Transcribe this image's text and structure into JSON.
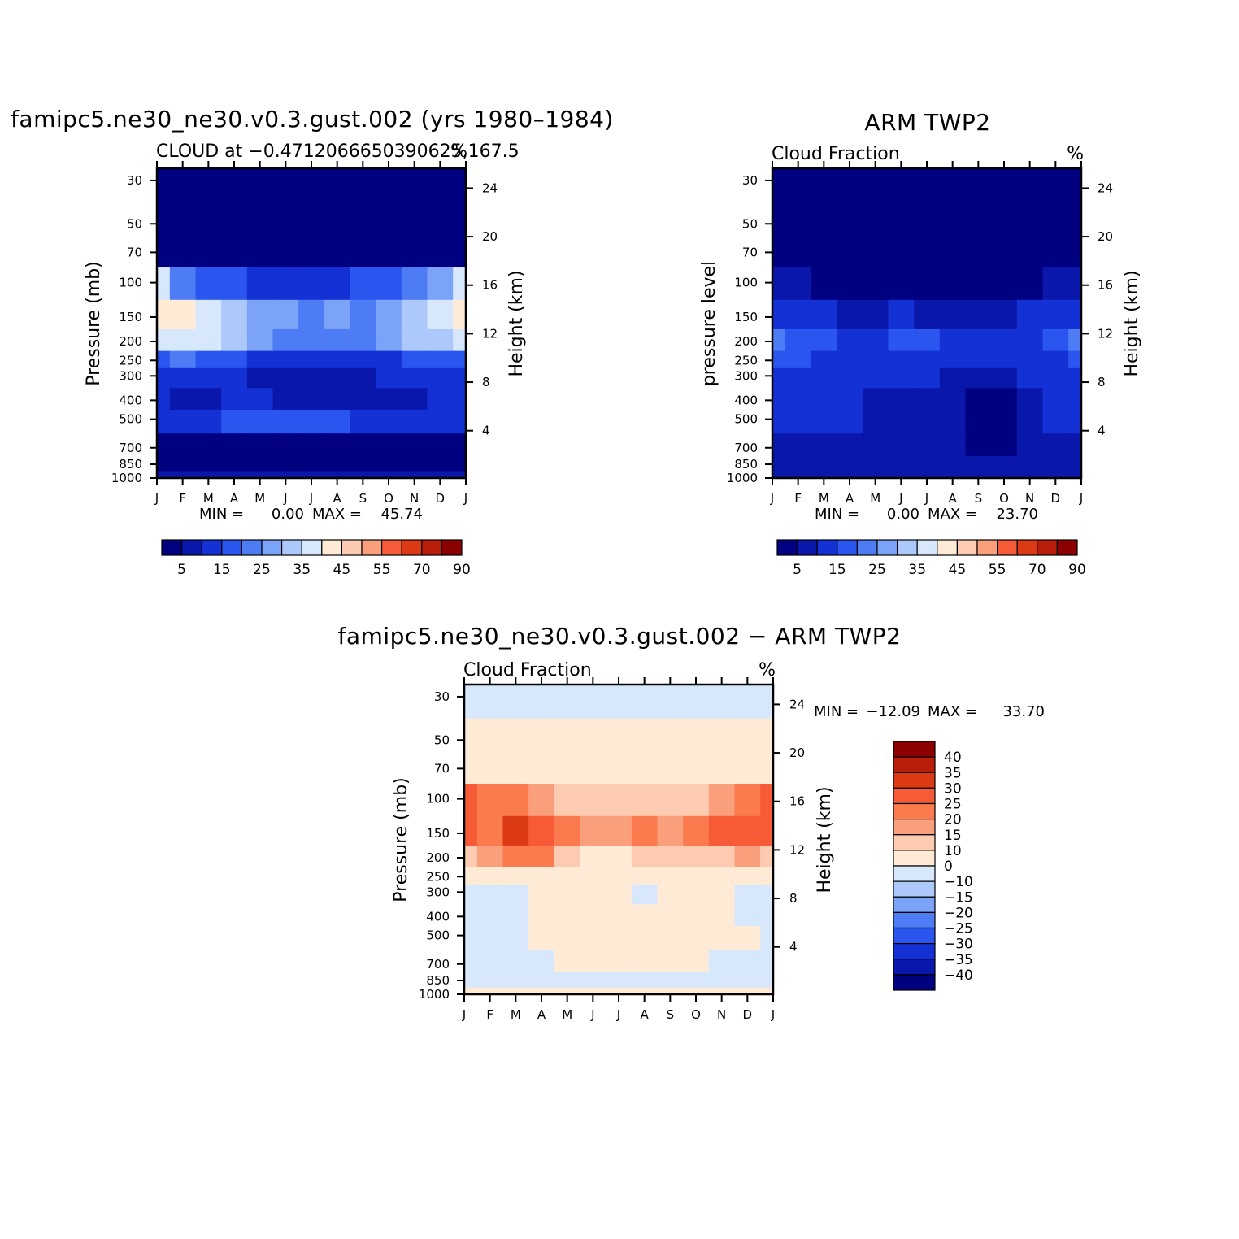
{
  "palette": {
    "blue_red_14": [
      "#000080",
      "#0a17ab",
      "#1431d6",
      "#2a55ee",
      "#4d7cf5",
      "#7ba3f7",
      "#adc8fa",
      "#d7e8fd",
      "#ffead6",
      "#fdcbb2",
      "#fa9f7b",
      "#f65a36",
      "#dc3a14",
      "#b81e09",
      "#8b0000"
    ],
    "diff_18": [
      "#000080",
      "#0a17ab",
      "#1431d6",
      "#2a55ee",
      "#4d7cf5",
      "#7ba3f7",
      "#adc8fa",
      "#d7e8fd",
      "#ffead6",
      "#fdcbb2",
      "#fa9f7b",
      "#fb7a4e",
      "#f65a36",
      "#dc3a14",
      "#b81e09",
      "#8b0000"
    ]
  },
  "chart_data": [
    {
      "id": "model",
      "type": "heatmap",
      "title": "famipc5.ne30_ne30.v0.3.gust.002 (yrs 1980–1984)",
      "subtitle_left": "CLOUD at −0.4712066650390625,167.5",
      "subtitle_right": "%",
      "ylabel": "Pressure (mb)",
      "ylabel_right": "Height (km)",
      "pressure_ticks": [
        30,
        50,
        70,
        100,
        150,
        200,
        250,
        300,
        400,
        500,
        700,
        850,
        1000
      ],
      "height_ticks": [
        24,
        20,
        16,
        12,
        8,
        4
      ],
      "months": [
        "J",
        "F",
        "M",
        "A",
        "M",
        "J",
        "J",
        "A",
        "S",
        "O",
        "N",
        "D",
        "J"
      ],
      "stats": {
        "min_label": "MIN =",
        "min": "0.00",
        "max_label": "MAX =",
        "max": "45.74"
      },
      "levels": [
        30,
        50,
        70,
        100,
        150,
        200,
        250,
        300,
        400,
        500,
        700,
        850,
        1000
      ],
      "values": [
        [
          0,
          0,
          0,
          0,
          0,
          0,
          0,
          0,
          0,
          0,
          0,
          0,
          0
        ],
        [
          0,
          0,
          0,
          0,
          0,
          0,
          0,
          0,
          0,
          0,
          0,
          0,
          0
        ],
        [
          3,
          1,
          1,
          1,
          1,
          1,
          1,
          1,
          1,
          1,
          1,
          1,
          3
        ],
        [
          38,
          22,
          18,
          16,
          14,
          13,
          12,
          13,
          15,
          18,
          22,
          28,
          38
        ],
        [
          42,
          40,
          38,
          30,
          27,
          26,
          23,
          27,
          24,
          28,
          34,
          36,
          42
        ],
        [
          35,
          38,
          38,
          34,
          26,
          22,
          22,
          22,
          22,
          26,
          32,
          33,
          35
        ],
        [
          18,
          20,
          19,
          16,
          14,
          13,
          12,
          12,
          13,
          14,
          16,
          17,
          18
        ],
        [
          12,
          12,
          12,
          11,
          9,
          8,
          8,
          8,
          9,
          10,
          11,
          12,
          12
        ],
        [
          10,
          7,
          7,
          12,
          11,
          8,
          8,
          8,
          8,
          8,
          8,
          10,
          10
        ],
        [
          12,
          11,
          12,
          18,
          16,
          16,
          16,
          16,
          14,
          13,
          12,
          12,
          12
        ],
        [
          4,
          4,
          4,
          4,
          4,
          4,
          4,
          4,
          4,
          4,
          4,
          4,
          4
        ],
        [
          3,
          3,
          3,
          3,
          3,
          3,
          3,
          3,
          3,
          3,
          3,
          3,
          3
        ],
        [
          9,
          9,
          9,
          9,
          9,
          9,
          9,
          9,
          9,
          9,
          9,
          9,
          9
        ]
      ]
    },
    {
      "id": "obs",
      "type": "heatmap",
      "title": "ARM TWP2",
      "subtitle_left": "Cloud Fraction",
      "subtitle_right": "%",
      "ylabel": "pressure level",
      "ylabel_right": "Height (km)",
      "pressure_ticks": [
        30,
        50,
        70,
        100,
        150,
        200,
        250,
        300,
        400,
        500,
        700,
        850,
        1000
      ],
      "height_ticks": [
        24,
        20,
        16,
        12,
        8,
        4
      ],
      "months": [
        "J",
        "F",
        "M",
        "A",
        "M",
        "J",
        "J",
        "A",
        "S",
        "O",
        "N",
        "D",
        "J"
      ],
      "stats": {
        "min_label": "MIN =",
        "min": "0.00",
        "max_label": "MAX =",
        "max": "23.70"
      },
      "levels": [
        30,
        50,
        70,
        100,
        150,
        200,
        250,
        300,
        400,
        500,
        700,
        850,
        1000
      ],
      "values": [
        [
          0,
          0,
          0,
          0,
          0,
          0,
          0,
          0,
          0,
          0,
          0,
          0,
          0
        ],
        [
          0,
          0,
          0,
          0,
          0,
          0,
          0,
          0,
          0,
          0,
          0,
          0,
          0
        ],
        [
          1,
          0,
          0,
          0,
          0,
          0,
          0,
          0,
          0,
          0,
          0,
          0,
          1
        ],
        [
          6,
          5,
          4,
          3,
          2,
          2,
          2,
          2,
          3,
          4,
          4,
          5,
          6
        ],
        [
          13,
          12,
          12,
          9,
          8,
          10,
          9,
          8,
          7,
          9,
          10,
          11,
          13
        ],
        [
          20,
          19,
          16,
          11,
          11,
          16,
          17,
          12,
          11,
          13,
          14,
          16,
          20
        ],
        [
          18,
          17,
          13,
          12,
          13,
          13,
          13,
          12,
          11,
          11,
          12,
          13,
          18
        ],
        [
          14,
          14,
          12,
          12,
          11,
          10,
          10,
          9,
          7,
          9,
          11,
          12,
          14
        ],
        [
          13,
          13,
          13,
          10,
          9,
          9,
          9,
          8,
          4,
          4,
          9,
          10,
          13
        ],
        [
          12,
          13,
          13,
          10,
          8,
          8,
          8,
          9,
          4,
          4,
          7,
          10,
          12
        ],
        [
          7,
          9,
          9,
          7,
          5,
          5,
          6,
          7,
          4,
          4,
          7,
          8,
          7
        ],
        [
          6,
          7,
          7,
          6,
          5,
          6,
          6,
          6,
          5,
          6,
          6,
          7,
          6
        ],
        [
          9,
          9,
          9,
          9,
          9,
          9,
          9,
          9,
          9,
          9,
          9,
          9,
          9
        ]
      ],
      "colorbar_labels": [
        "5",
        "15",
        "25",
        "35",
        "45",
        "55",
        "70",
        "90"
      ]
    },
    {
      "id": "diff",
      "type": "heatmap",
      "title": "famipc5.ne30_ne30.v0.3.gust.002 − ARM TWP2",
      "subtitle_left": "Cloud Fraction",
      "subtitle_right": "%",
      "ylabel": "Pressure (mb)",
      "ylabel_right": "Height (km)",
      "pressure_ticks": [
        30,
        50,
        70,
        100,
        150,
        200,
        250,
        300,
        400,
        500,
        700,
        850,
        1000
      ],
      "height_ticks": [
        24,
        20,
        16,
        12,
        8,
        4
      ],
      "months": [
        "J",
        "F",
        "M",
        "A",
        "M",
        "J",
        "J",
        "A",
        "S",
        "O",
        "N",
        "D",
        "J"
      ],
      "stats": {
        "min_label": "MIN =",
        "min": "−12.09",
        "max_label": "MAX =",
        "max": "33.70"
      },
      "levels": [
        30,
        50,
        70,
        100,
        150,
        200,
        250,
        300,
        400,
        500,
        700,
        850,
        1000
      ],
      "values": [
        [
          -2,
          -2,
          -2,
          -2,
          -2,
          -2,
          -2,
          -2,
          -2,
          -2,
          -2,
          -2,
          -2
        ],
        [
          2,
          2,
          2,
          2,
          2,
          2,
          1,
          2,
          2,
          2,
          2,
          2,
          2
        ],
        [
          5,
          4,
          4,
          4,
          4,
          3,
          3,
          3,
          3,
          3,
          4,
          4,
          5
        ],
        [
          25,
          20,
          20,
          16,
          14,
          10,
          12,
          13,
          14,
          14,
          18,
          22,
          25
        ],
        [
          28,
          24,
          32,
          26,
          20,
          16,
          18,
          24,
          18,
          22,
          26,
          28,
          28
        ],
        [
          14,
          18,
          22,
          20,
          12,
          8,
          8,
          10,
          12,
          12,
          14,
          16,
          14
        ],
        [
          2,
          3,
          4,
          6,
          5,
          4,
          4,
          4,
          6,
          6,
          5,
          3,
          2
        ],
        [
          -2,
          -3,
          -2,
          1,
          3,
          3,
          2,
          -2,
          2,
          2,
          1,
          -2,
          -2
        ],
        [
          -2,
          -2,
          -2,
          2,
          3,
          3,
          2,
          2,
          4,
          3,
          1,
          -2,
          -2
        ],
        [
          -2,
          -2,
          -2,
          3,
          6,
          4,
          6,
          3,
          6,
          4,
          2,
          3,
          -2
        ],
        [
          -3,
          -3,
          -6,
          -2,
          2,
          2,
          2,
          2,
          2,
          2,
          -2,
          -2,
          -3
        ],
        [
          -3,
          -4,
          -2,
          -2,
          -2,
          -2,
          -2,
          -2,
          -2,
          -2,
          -2,
          -2,
          -3
        ],
        [
          1,
          1,
          1,
          1,
          1,
          1,
          1,
          1,
          1,
          1,
          1,
          1,
          1
        ]
      ],
      "colorbar_labels": [
        "40",
        "35",
        "30",
        "25",
        "20",
        "15",
        "10",
        "0",
        "−10",
        "−15",
        "−20",
        "−25",
        "−30",
        "−35",
        "−40"
      ]
    }
  ],
  "colorbar_main": {
    "labels": [
      "5",
      "15",
      "25",
      "35",
      "45",
      "55",
      "70",
      "90"
    ]
  }
}
